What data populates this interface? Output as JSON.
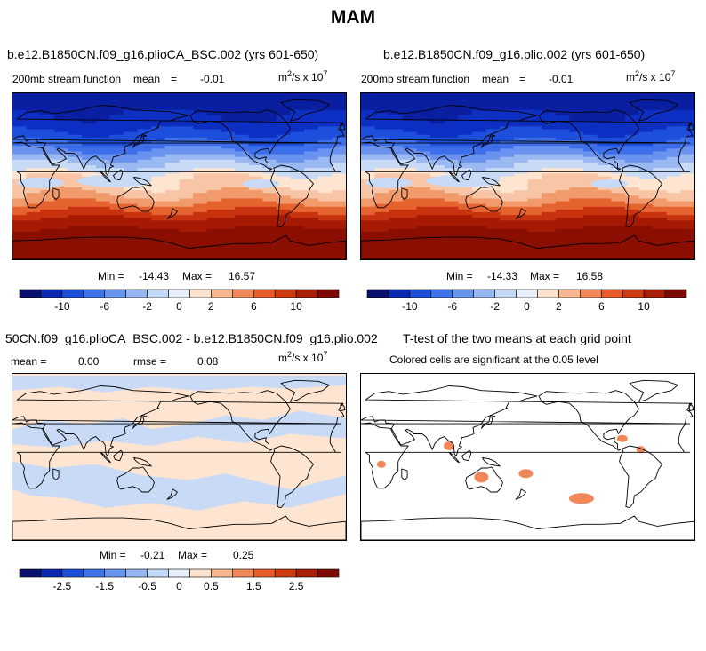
{
  "figure": {
    "title": "MAM",
    "units_base": "m",
    "units_exp": "2",
    "units_mid": "/s x 10",
    "units_scale": "7"
  },
  "panels": {
    "p1": {
      "title": "b.e12.B1850CN.f09_g16.plioCA_BSC.002 (yrs 601-650)",
      "variable": "200mb stream function",
      "mean_label": "mean",
      "mean_eq": "=",
      "mean_value": "-0.01",
      "min_label": "Min =",
      "min_value": "-14.43",
      "max_label": "Max =",
      "max_value": "16.57"
    },
    "p2": {
      "title": "b.e12.B1850CN.f09_g16.plio.002 (yrs 601-650)",
      "variable": "200mb stream function",
      "mean_label": "mean",
      "mean_eq": "=",
      "mean_value": "-0.01",
      "min_label": "Min =",
      "min_value": "-14.33",
      "max_label": "Max =",
      "max_value": "16.58"
    },
    "p3": {
      "title": "50CN.f09_g16.plioCA_BSC.002 - b.e12.B1850CN.f09_g16.plio.002",
      "mean_text": "mean =",
      "mean_value": "0.00",
      "rmse_text": "rmse =",
      "rmse_value": "0.08",
      "min_label": "Min =",
      "min_value": "-0.21",
      "max_label": "Max =",
      "max_value": "0.25"
    },
    "p4": {
      "title": "T-test of the two means at each grid point",
      "subtitle": "Colored cells are significant at the 0.05 level"
    }
  },
  "colorbars": {
    "top": {
      "colors": [
        "#08106c",
        "#0a28b0",
        "#1b4fd8",
        "#3d74ea",
        "#6795ee",
        "#95b6f1",
        "#c4d9f6",
        "#e8eefa",
        "#fde3cf",
        "#f7b892",
        "#f2885a",
        "#e85b2a",
        "#cc3a10",
        "#a81e06",
        "#7d0a02"
      ],
      "tick_labels": [
        "-10",
        "-6",
        "-2",
        "0",
        "2",
        "6",
        "10"
      ]
    },
    "bottom": {
      "colors": [
        "#08106c",
        "#0a28b0",
        "#1b4fd8",
        "#3d74ea",
        "#6795ee",
        "#95b6f1",
        "#c4d9f6",
        "#e8eefa",
        "#fde3cf",
        "#f7b892",
        "#f2885a",
        "#e85b2a",
        "#cc3a10",
        "#a81e06",
        "#7d0a02"
      ],
      "tick_labels": [
        "-2.5",
        "-1.5",
        "-0.5",
        "0",
        "0.5",
        "1.5",
        "2.5"
      ]
    }
  },
  "chart_data": [
    {
      "type": "heatmap",
      "title": "b.e12.B1850CN.f09_g16.plioCA_BSC.002 (yrs 601-650)",
      "subtitle": "200mb stream function",
      "field": "200mb stream function (m^2/s x 10^7)",
      "mean": -0.01,
      "min": -14.43,
      "max": 16.57,
      "zonal_profile": {
        "lat": [
          90,
          75,
          60,
          45,
          30,
          15,
          0,
          -15,
          -30,
          -45,
          -60,
          -75,
          -90
        ],
        "value": [
          -14,
          -13,
          -12,
          -10,
          -7,
          -3,
          0.5,
          2,
          5,
          9,
          13,
          15,
          16
        ]
      },
      "colorbar_levels": [
        -12,
        -10,
        -8,
        -6,
        -4,
        -2,
        -1,
        0,
        1,
        2,
        4,
        6,
        8,
        10,
        12
      ]
    },
    {
      "type": "heatmap",
      "title": "b.e12.B1850CN.f09_g16.plio.002 (yrs 601-650)",
      "subtitle": "200mb stream function",
      "field": "200mb stream function (m^2/s x 10^7)",
      "mean": -0.01,
      "min": -14.33,
      "max": 16.58,
      "zonal_profile": {
        "lat": [
          90,
          75,
          60,
          45,
          30,
          15,
          0,
          -15,
          -30,
          -45,
          -60,
          -75,
          -90
        ],
        "value": [
          -14,
          -13,
          -12,
          -10,
          -7,
          -3,
          0.5,
          2,
          5,
          9,
          13,
          15,
          16
        ]
      },
      "colorbar_levels": [
        -12,
        -10,
        -8,
        -6,
        -4,
        -2,
        -1,
        0,
        1,
        2,
        4,
        6,
        8,
        10,
        12
      ]
    },
    {
      "type": "heatmap",
      "title": "50CN.f09_g16.plioCA_BSC.002 - b.e12.B1850CN.f09_g16.plio.002",
      "field": "difference (m^2/s x 10^7)",
      "mean": 0.0,
      "rmse": 0.08,
      "min": -0.21,
      "max": 0.25,
      "colorbar_levels": [
        -3,
        -2.5,
        -2,
        -1.5,
        -1,
        -0.5,
        -0.25,
        0,
        0.25,
        0.5,
        1,
        1.5,
        2,
        2.5,
        3
      ]
    },
    {
      "type": "heatmap",
      "title": "T-test of the two means at each grid point",
      "subtitle": "Colored cells are significant at the 0.05 level",
      "significance_level": 0.05,
      "significant_regions": [
        {
          "lon": 22,
          "lat": -8
        },
        {
          "lon": 95,
          "lat": 12
        },
        {
          "lon": 130,
          "lat": -22
        },
        {
          "lon": 178,
          "lat": -18
        },
        {
          "lon": 238,
          "lat": -45
        },
        {
          "lon": 282,
          "lat": 20
        },
        {
          "lon": 302,
          "lat": 8
        }
      ]
    }
  ]
}
